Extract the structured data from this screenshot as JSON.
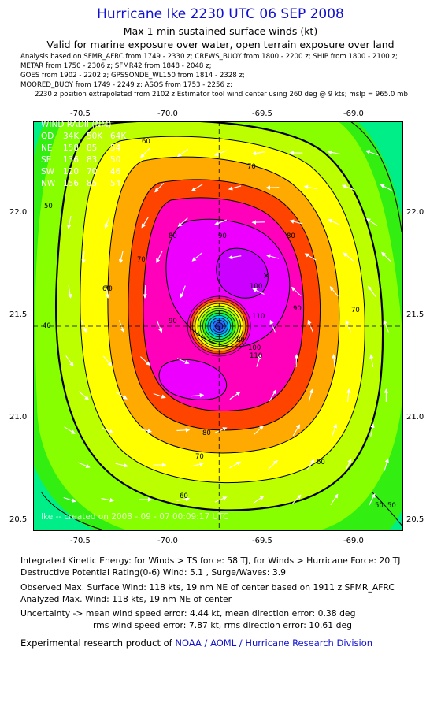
{
  "header": {
    "title": "Hurricane Ike 2230 UTC 06 SEP 2008",
    "subtitle": "Max 1-min sustained surface winds (kt)",
    "validity": "Valid for marine exposure over water, open terrain exposure over land"
  },
  "analysis_sources": [
    "Analysis based on   SFMR_AFRC from 1749 - 2330 z;  CREWS_BUOY from 1800 - 2200 z;  SHIP from 1800 - 2100 z;",
    "METAR from 1750 - 2306 z;  SFMR42 from 1848 - 2048 z;",
    "GOES from 1902 - 2202 z;  GPSSONDE_WL150 from 1814 - 2328 z;",
    "MOORED_BUOY from 1749 - 2249 z;  ASOS from 1753 - 2256 z;",
    "2230 z position extrapolated from 2102 z Estimator tool wind center using 260 deg @ 9 kts; mslp = 965.0 mb"
  ],
  "map": {
    "lon_ticks": [
      "-70.5",
      "-70.0",
      "-69.5",
      "-69.0"
    ],
    "lat_ticks": [
      "22.0",
      "21.5",
      "21.0",
      "20.5"
    ],
    "lon_range": [
      -70.73,
      -68.84
    ],
    "lat_range": [
      20.45,
      22.45
    ],
    "center": {
      "lon": -69.78,
      "lat": 21.45
    },
    "max_wind_marker": {
      "lon": -69.54,
      "lat": 21.7
    },
    "contour_labels": [
      "60",
      "70",
      "80",
      "90",
      "100",
      "110",
      "50",
      "40",
      "60",
      "70",
      "80",
      "90",
      "60",
      "50",
      "70",
      "80",
      "90",
      "80",
      "70",
      "60",
      "50",
      "110",
      "100",
      "70"
    ],
    "watermark": "Ike  --  created on  2008 - 09 - 07  00:09:17  UTC",
    "wind_radii": {
      "heading": "WIND RADII (NM)",
      "columns": [
        "QD",
        "34K",
        "50K",
        "64K"
      ],
      "rows": [
        [
          "NE",
          "158",
          "85",
          "54"
        ],
        [
          "SE",
          "136",
          "83",
          "50"
        ],
        [
          "SW",
          "120",
          "70",
          "46"
        ],
        [
          "NW",
          "156",
          "85",
          "54"
        ]
      ]
    },
    "colors": {
      "below_30": "#00ee88",
      "30_40": "#33ee11",
      "40_50": "#88ff00",
      "50_60": "#bbff00",
      "60_70": "#ffff00",
      "70_80": "#ffaa00",
      "80_90": "#ff4400",
      "90_100": "#ff00bb",
      "100_110": "#ee00ff",
      "110_plus": "#cc00ff",
      "eye": "#3366ff"
    }
  },
  "info": {
    "ike": "Integrated Kinetic Energy:  for Winds > TS force: 58 TJ,  for Winds > Hurricane Force: 20 TJ",
    "dpr": "Destructive Potential Rating(0-6)   Wind: 5.1 , Surge/Waves: 3.9",
    "observed": "Observed Max. Surface Wind: 118 kts, 19 nm NE of center based on 1911 z SFMR_AFRC",
    "analyzed": "Analyzed Max. Wind: 118 kts, 19 nm NE of center",
    "uncertainty": "Uncertainty -> mean wind speed error: 4.44 kt,   mean direction error: 0.38 deg",
    "rms": "rms wind speed error: 7.87 kt,   rms direction error: 10.61 deg",
    "credit_prefix": "Experimental research product of",
    "credit_link": "NOAA / AOML / Hurricane Research Division"
  }
}
